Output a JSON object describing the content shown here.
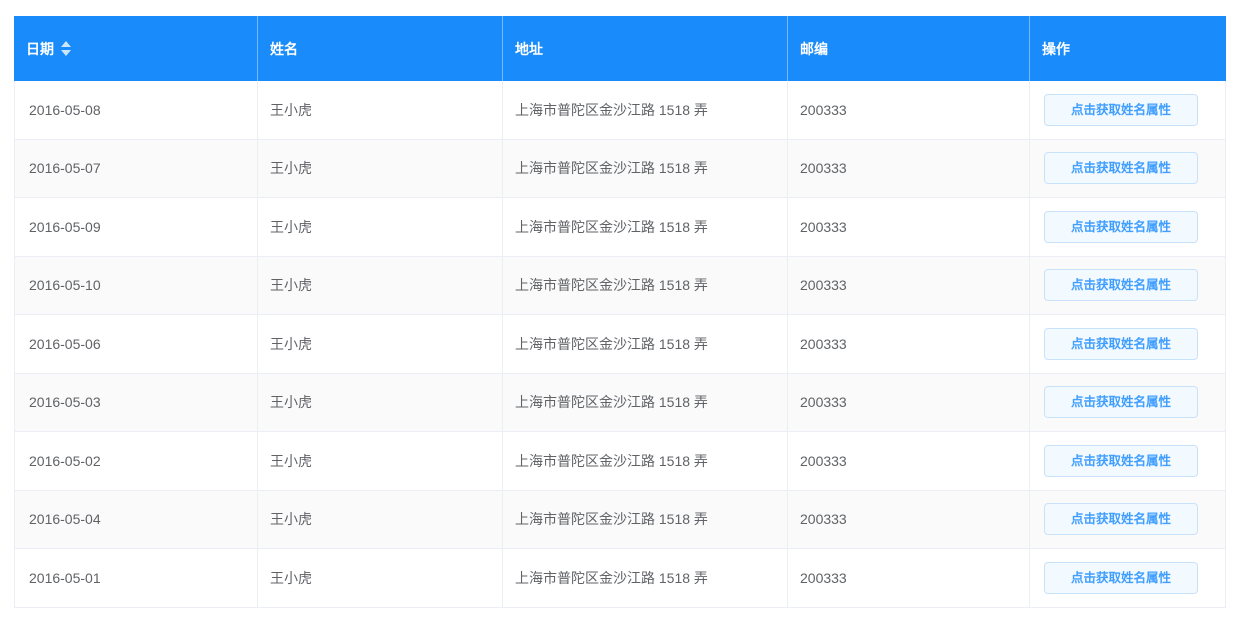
{
  "table": {
    "columns": [
      {
        "key": "date",
        "label": "日期",
        "sortable": true
      },
      {
        "key": "name",
        "label": "姓名",
        "sortable": false
      },
      {
        "key": "address",
        "label": "地址",
        "sortable": false
      },
      {
        "key": "zip",
        "label": "邮编",
        "sortable": false
      },
      {
        "key": "action",
        "label": "操作",
        "sortable": false
      }
    ],
    "action_button_label": "点击获取姓名属性",
    "rows": [
      {
        "date": "2016-05-08",
        "name": "王小虎",
        "address": "上海市普陀区金沙江路 1518 弄",
        "zip": "200333"
      },
      {
        "date": "2016-05-07",
        "name": "王小虎",
        "address": "上海市普陀区金沙江路 1518 弄",
        "zip": "200333"
      },
      {
        "date": "2016-05-09",
        "name": "王小虎",
        "address": "上海市普陀区金沙江路 1518 弄",
        "zip": "200333"
      },
      {
        "date": "2016-05-10",
        "name": "王小虎",
        "address": "上海市普陀区金沙江路 1518 弄",
        "zip": "200333"
      },
      {
        "date": "2016-05-06",
        "name": "王小虎",
        "address": "上海市普陀区金沙江路 1518 弄",
        "zip": "200333"
      },
      {
        "date": "2016-05-03",
        "name": "王小虎",
        "address": "上海市普陀区金沙江路 1518 弄",
        "zip": "200333"
      },
      {
        "date": "2016-05-02",
        "name": "王小虎",
        "address": "上海市普陀区金沙江路 1518 弄",
        "zip": "200333"
      },
      {
        "date": "2016-05-04",
        "name": "王小虎",
        "address": "上海市普陀区金沙江路 1518 弄",
        "zip": "200333"
      },
      {
        "date": "2016-05-01",
        "name": "王小虎",
        "address": "上海市普陀区金沙江路 1518 弄",
        "zip": "200333"
      }
    ]
  },
  "colors": {
    "header_bg": "#1a8bfa",
    "header_text": "#ffffff",
    "body_text": "#606266",
    "stripe_bg": "#fafafa",
    "border": "#ebeef5",
    "button_bg": "#f2f9ff",
    "button_border": "#c9e2fb",
    "button_text": "#409eff"
  }
}
